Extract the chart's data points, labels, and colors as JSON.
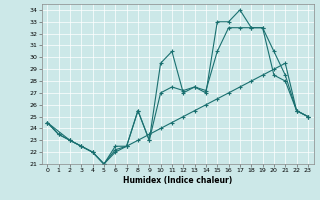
{
  "xlabel": "Humidex (Indice chaleur)",
  "xlim": [
    -0.5,
    23.5
  ],
  "ylim": [
    21,
    34.5
  ],
  "yticks": [
    21,
    22,
    23,
    24,
    25,
    26,
    27,
    28,
    29,
    30,
    31,
    32,
    33,
    34
  ],
  "xticks": [
    0,
    1,
    2,
    3,
    4,
    5,
    6,
    7,
    8,
    9,
    10,
    11,
    12,
    13,
    14,
    15,
    16,
    17,
    18,
    19,
    20,
    21,
    22,
    23
  ],
  "bg_color": "#cce8e8",
  "line_color": "#1a7070",
  "line1_x": [
    0,
    1,
    2,
    3,
    4,
    5,
    6,
    7,
    8,
    9,
    10,
    11,
    12,
    13,
    14,
    15,
    16,
    17,
    18,
    19,
    20,
    21,
    22,
    23
  ],
  "line1_y": [
    24.5,
    23.5,
    23.0,
    22.5,
    22.0,
    21.0,
    22.2,
    22.5,
    25.5,
    23.0,
    29.5,
    30.5,
    27.0,
    27.5,
    27.0,
    33.0,
    33.0,
    34.0,
    32.5,
    32.5,
    30.5,
    28.5,
    25.5,
    25.0
  ],
  "line2_x": [
    0,
    2,
    3,
    4,
    5,
    6,
    7,
    8,
    9,
    10,
    11,
    12,
    13,
    14,
    15,
    16,
    17,
    18,
    19,
    20,
    21,
    22,
    23
  ],
  "line2_y": [
    24.5,
    23.0,
    22.5,
    22.0,
    21.0,
    22.5,
    22.5,
    25.5,
    23.0,
    27.0,
    27.5,
    27.2,
    27.5,
    27.2,
    30.5,
    32.5,
    32.5,
    32.5,
    32.5,
    28.5,
    28.0,
    25.5,
    25.0
  ],
  "line3_x": [
    0,
    1,
    2,
    3,
    4,
    5,
    6,
    7,
    8,
    9,
    10,
    11,
    12,
    13,
    14,
    15,
    16,
    17,
    18,
    19,
    20,
    21,
    22,
    23
  ],
  "line3_y": [
    24.5,
    23.5,
    23.0,
    22.5,
    22.0,
    21.0,
    22.0,
    22.5,
    23.0,
    23.5,
    24.0,
    24.5,
    25.0,
    25.5,
    26.0,
    26.5,
    27.0,
    27.5,
    28.0,
    28.5,
    29.0,
    29.5,
    25.5,
    25.0
  ]
}
